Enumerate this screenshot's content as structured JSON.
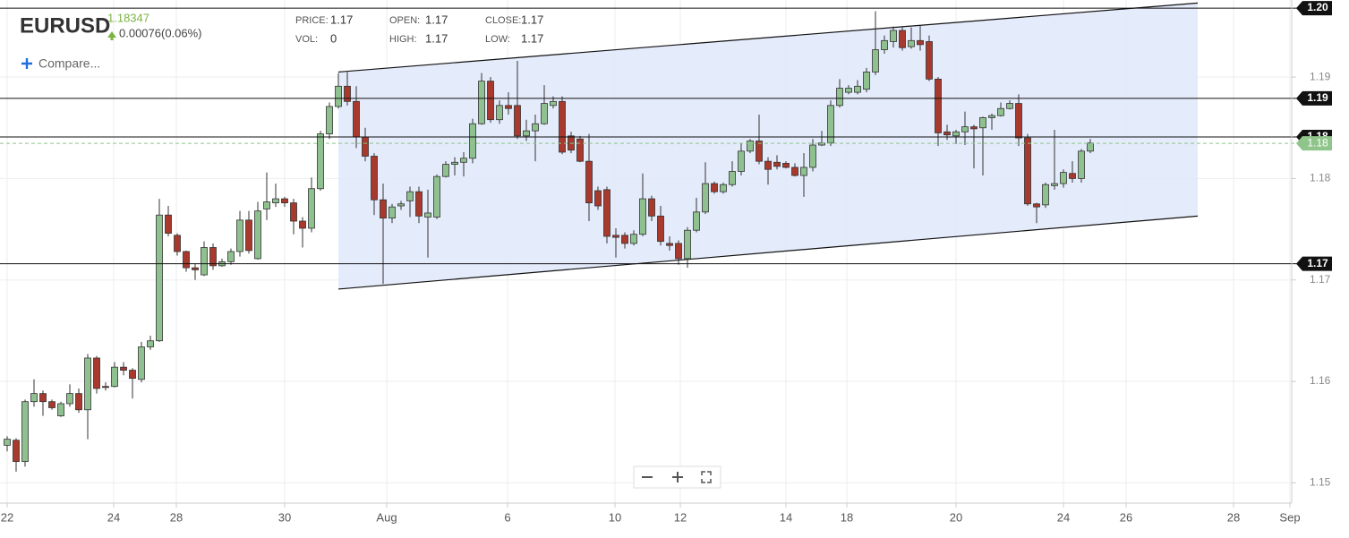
{
  "header": {
    "symbol": "EURUSD",
    "price": "1.18347",
    "change": "0.00076(0.06%)",
    "stats": [
      {
        "label": "PRICE:",
        "value": 1.17
      },
      {
        "label": "VOL:",
        "value": 0
      },
      {
        "label": "OPEN:",
        "value": 1.17
      },
      {
        "label": "HIGH:",
        "value": 1.17
      },
      {
        "label": "CLOSE:",
        "value": 1.17
      },
      {
        "label": "LOW:",
        "value": 1.17
      }
    ],
    "compare": "Compare..."
  },
  "chart_data": {
    "type": "candlestick",
    "up_color": "#8fc08f",
    "down_color": "#a8392c",
    "grid": true,
    "x": [
      0,
      1,
      2,
      3,
      4,
      5,
      6,
      7,
      8,
      9,
      10,
      11,
      12,
      13,
      14,
      15,
      16,
      17,
      18,
      19,
      20,
      21,
      22,
      23,
      24,
      25,
      26,
      27,
      28,
      29,
      30,
      31,
      32,
      33,
      34,
      35,
      36,
      37,
      38,
      39,
      40,
      41,
      42,
      43,
      44,
      45,
      46,
      47,
      48,
      49,
      50,
      51,
      52,
      53,
      54,
      55,
      56,
      57,
      58,
      59,
      60,
      61,
      62,
      63,
      64,
      65,
      66,
      67,
      68,
      69,
      70,
      71,
      72,
      73,
      74,
      75,
      76,
      77,
      78,
      79,
      80,
      81,
      82,
      83,
      84,
      85,
      86,
      87,
      88,
      89,
      90,
      91,
      92,
      93,
      94,
      95,
      96,
      97,
      98,
      99,
      100,
      101,
      102,
      103,
      104,
      105,
      106,
      107,
      108,
      109,
      110,
      111,
      112,
      113,
      114,
      115,
      116,
      117,
      118,
      119,
      120,
      121
    ],
    "open": [
      1.1537,
      1.1542,
      1.1521,
      1.158,
      1.1588,
      1.158,
      1.1566,
      1.1578,
      1.1588,
      1.1572,
      1.1623,
      1.1595,
      1.1595,
      1.1614,
      1.1611,
      1.1602,
      1.1634,
      1.164,
      1.1764,
      1.1744,
      1.1728,
      1.1712,
      1.1705,
      1.1732,
      1.1714,
      1.1718,
      1.1728,
      1.1759,
      1.1721,
      1.177,
      1.1776,
      1.178,
      1.1776,
      1.1758,
      1.1751,
      1.179,
      1.1844,
      1.1871,
      1.1891,
      1.1876,
      1.1841,
      1.1822,
      1.1779,
      1.1761,
      1.1773,
      1.1778,
      1.1787,
      1.1762,
      1.1762,
      1.1802,
      1.1814,
      1.1816,
      1.182,
      1.1854,
      1.1896,
      1.1858,
      1.1872,
      1.1872,
      1.1842,
      1.1847,
      1.1854,
      1.1872,
      1.1876,
      1.1842,
      1.1839,
      1.1817,
      1.1788,
      1.1789,
      1.1744,
      1.1744,
      1.1736,
      1.1745,
      1.178,
      1.1763,
      1.1736,
      1.1736,
      1.1721,
      1.1749,
      1.1767,
      1.1795,
      1.1787,
      1.1794,
      1.1807,
      1.1827,
      1.1837,
      1.1817,
      1.1816,
      1.1815,
      1.1811,
      1.1803,
      1.1811,
      1.1833,
      1.1835,
      1.1872,
      1.1885,
      1.1885,
      1.1888,
      1.1905,
      1.1927,
      1.1935,
      1.1946,
      1.193,
      1.1936,
      1.1935,
      1.1898,
      1.1846,
      1.1842,
      1.1846,
      1.1851,
      1.185,
      1.186,
      1.1862,
      1.1869,
      1.1874,
      1.184,
      1.1775,
      1.1774,
      1.1793,
      1.1795,
      1.1805,
      1.18,
      1.1827
    ],
    "high": [
      1.1546,
      1.1544,
      1.1582,
      1.1602,
      1.1591,
      1.1582,
      1.158,
      1.1597,
      1.1593,
      1.1627,
      1.1625,
      1.1599,
      1.1619,
      1.1619,
      1.1613,
      1.1639,
      1.1645,
      1.178,
      1.1773,
      1.1746,
      1.1729,
      1.1716,
      1.1738,
      1.1736,
      1.1721,
      1.1731,
      1.1768,
      1.1768,
      1.1777,
      1.1806,
      1.1795,
      1.1782,
      1.178,
      1.1762,
      1.1801,
      1.1847,
      1.1875,
      1.1904,
      1.1905,
      1.1891,
      1.185,
      1.1825,
      1.1795,
      1.1775,
      1.1778,
      1.1792,
      1.1792,
      1.1789,
      1.1804,
      1.1817,
      1.1821,
      1.1826,
      1.1859,
      1.1904,
      1.19,
      1.1877,
      1.1885,
      1.1916,
      1.1858,
      1.1863,
      1.1892,
      1.1881,
      1.1881,
      1.1846,
      1.1842,
      1.1844,
      1.1792,
      1.1792,
      1.1751,
      1.1747,
      1.1749,
      1.1805,
      1.1783,
      1.1773,
      1.1743,
      1.1739,
      1.1752,
      1.1781,
      1.1816,
      1.1797,
      1.1796,
      1.1817,
      1.1835,
      1.1839,
      1.1863,
      1.1821,
      1.1823,
      1.1817,
      1.1815,
      1.1825,
      1.1839,
      1.1847,
      1.1877,
      1.1898,
      1.1892,
      1.1897,
      1.1909,
      1.1965,
      1.1941,
      1.195,
      1.1949,
      1.1949,
      1.1951,
      1.1941,
      1.19,
      1.1853,
      1.1848,
      1.1866,
      1.1853,
      1.1861,
      1.1864,
      1.1875,
      1.1877,
      1.1883,
      1.1844,
      1.1776,
      1.1796,
      1.1848,
      1.1809,
      1.1817,
      1.1829,
      1.1839
    ],
    "low": [
      1.1531,
      1.1511,
      1.1516,
      1.1575,
      1.1566,
      1.1572,
      1.1565,
      1.1575,
      1.1569,
      1.1543,
      1.1588,
      1.1591,
      1.1594,
      1.1606,
      1.1583,
      1.1599,
      1.1631,
      1.1639,
      1.1743,
      1.1724,
      1.1708,
      1.17,
      1.1704,
      1.171,
      1.1713,
      1.1715,
      1.1723,
      1.1726,
      1.172,
      1.1759,
      1.1772,
      1.1772,
      1.1745,
      1.1732,
      1.1747,
      1.1788,
      1.1839,
      1.1869,
      1.1872,
      1.183,
      1.1817,
      1.1764,
      1.1696,
      1.1756,
      1.1769,
      1.1762,
      1.1756,
      1.1722,
      1.176,
      1.1801,
      1.1803,
      1.1802,
      1.1815,
      1.1853,
      1.1855,
      1.1854,
      1.1863,
      1.1839,
      1.1837,
      1.1817,
      1.1853,
      1.1869,
      1.1824,
      1.1825,
      1.1816,
      1.1758,
      1.1769,
      1.1736,
      1.1722,
      1.1731,
      1.1734,
      1.1743,
      1.1758,
      1.1734,
      1.1729,
      1.1715,
      1.1712,
      1.1747,
      1.1765,
      1.1785,
      1.1785,
      1.1792,
      1.1803,
      1.1825,
      1.1814,
      1.1794,
      1.1809,
      1.181,
      1.1802,
      1.1782,
      1.1807,
      1.1832,
      1.1832,
      1.187,
      1.1883,
      1.1883,
      1.1885,
      1.1902,
      1.1923,
      1.1929,
      1.1926,
      1.1928,
      1.1926,
      1.1896,
      1.1832,
      1.1838,
      1.1834,
      1.1833,
      1.181,
      1.1803,
      1.1848,
      1.1861,
      1.1868,
      1.1832,
      1.1773,
      1.1756,
      1.1771,
      1.1789,
      1.1791,
      1.1796,
      1.1796,
      1.1825
    ],
    "close": [
      1.1543,
      1.1521,
      1.158,
      1.1588,
      1.158,
      1.1574,
      1.1578,
      1.1588,
      1.1572,
      1.1623,
      1.1593,
      1.1594,
      1.1614,
      1.1611,
      1.1603,
      1.1634,
      1.164,
      1.1764,
      1.1746,
      1.1728,
      1.1712,
      1.171,
      1.1732,
      1.1714,
      1.1718,
      1.1728,
      1.1759,
      1.1729,
      1.1768,
      1.1777,
      1.178,
      1.1776,
      1.1758,
      1.1751,
      1.179,
      1.1844,
      1.1871,
      1.1891,
      1.1876,
      1.1841,
      1.1822,
      1.1779,
      1.1761,
      1.1772,
      1.1775,
      1.1787,
      1.1763,
      1.1766,
      1.1802,
      1.1814,
      1.1816,
      1.182,
      1.1854,
      1.1896,
      1.1858,
      1.1872,
      1.1869,
      1.1842,
      1.1847,
      1.1854,
      1.1874,
      1.1876,
      1.1826,
      1.1828,
      1.1817,
      1.1776,
      1.1773,
      1.1743,
      1.1742,
      1.1736,
      1.1745,
      1.178,
      1.1763,
      1.1738,
      1.1734,
      1.1721,
      1.1749,
      1.1767,
      1.1795,
      1.1787,
      1.1794,
      1.1807,
      1.1827,
      1.1837,
      1.1817,
      1.1809,
      1.1812,
      1.1811,
      1.1803,
      1.1811,
      1.1833,
      1.1835,
      1.1872,
      1.1889,
      1.1889,
      1.1891,
      1.1905,
      1.1927,
      1.1936,
      1.1946,
      1.1929,
      1.1936,
      1.1932,
      1.1898,
      1.1845,
      1.1843,
      1.1846,
      1.1851,
      1.1849,
      1.186,
      1.1862,
      1.1869,
      1.1874,
      1.184,
      1.1775,
      1.1772,
      1.1794,
      1.1795,
      1.1806,
      1.18,
      1.1827,
      1.1835
    ],
    "xlim": [
      -0.8,
      143.5
    ],
    "xticks": [
      {
        "value": 0,
        "label": "22"
      },
      {
        "value": 11.9,
        "label": "24"
      },
      {
        "value": 18.9,
        "label": "28"
      },
      {
        "value": 31,
        "label": "30"
      },
      {
        "value": 42.4,
        "label": "Aug"
      },
      {
        "value": 55.9,
        "label": "6"
      },
      {
        "value": 67.9,
        "label": "10"
      },
      {
        "value": 75.2,
        "label": "12"
      },
      {
        "value": 87,
        "label": "14"
      },
      {
        "value": 93.8,
        "label": "18"
      },
      {
        "value": 106,
        "label": "20"
      },
      {
        "value": 118,
        "label": "24"
      },
      {
        "value": 125,
        "label": "26"
      },
      {
        "value": 137,
        "label": "28"
      },
      {
        "value": 143.3,
        "label": "Sep"
      }
    ],
    "ylim": [
      1.148,
      1.1976
    ],
    "yticks": [
      1.15,
      1.16,
      1.17,
      1.18,
      1.19
    ],
    "levels": [
      {
        "value": 1.1968,
        "label": "1.20"
      },
      {
        "value": 1.1879,
        "label": "1.19"
      },
      {
        "value": 1.1841,
        "label": "1.18"
      },
      {
        "value": 1.1716,
        "label": "1.17"
      }
    ],
    "last_price": {
      "value": 1.18347,
      "label": "1.18"
    },
    "channel": {
      "x": [
        37,
        133
      ],
      "upper": [
        1.1905,
        1.1973
      ],
      "lower": [
        1.1691,
        1.1763
      ]
    }
  }
}
